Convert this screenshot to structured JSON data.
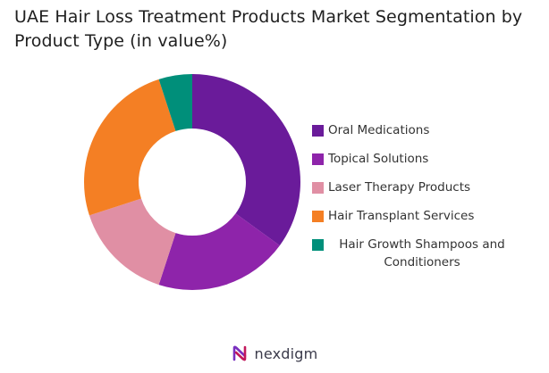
{
  "title": "UAE Hair Loss Treatment Products Market Segmentation by Product Type (in value%)",
  "footer": {
    "brand": "nexdigm",
    "brand_accent_color": "#7a2fbf"
  },
  "chart_data": {
    "type": "pie",
    "style": "donut",
    "title": "UAE Hair Loss Treatment Products Market Segmentation by Product Type (in value%)",
    "legend_position": "right",
    "series": [
      {
        "name": "Oral Medications",
        "value": 35,
        "color": "#6a1b9a"
      },
      {
        "name": "Topical Solutions",
        "value": 20,
        "color": "#8e24aa"
      },
      {
        "name": "Laser Therapy Products",
        "value": 15,
        "color": "#e08fa4"
      },
      {
        "name": "Hair Transplant Services",
        "value": 25,
        "color": "#f47f24"
      },
      {
        "name": "Hair Growth Shampoos and Conditioners",
        "value": 5,
        "color": "#008f7a"
      }
    ]
  }
}
